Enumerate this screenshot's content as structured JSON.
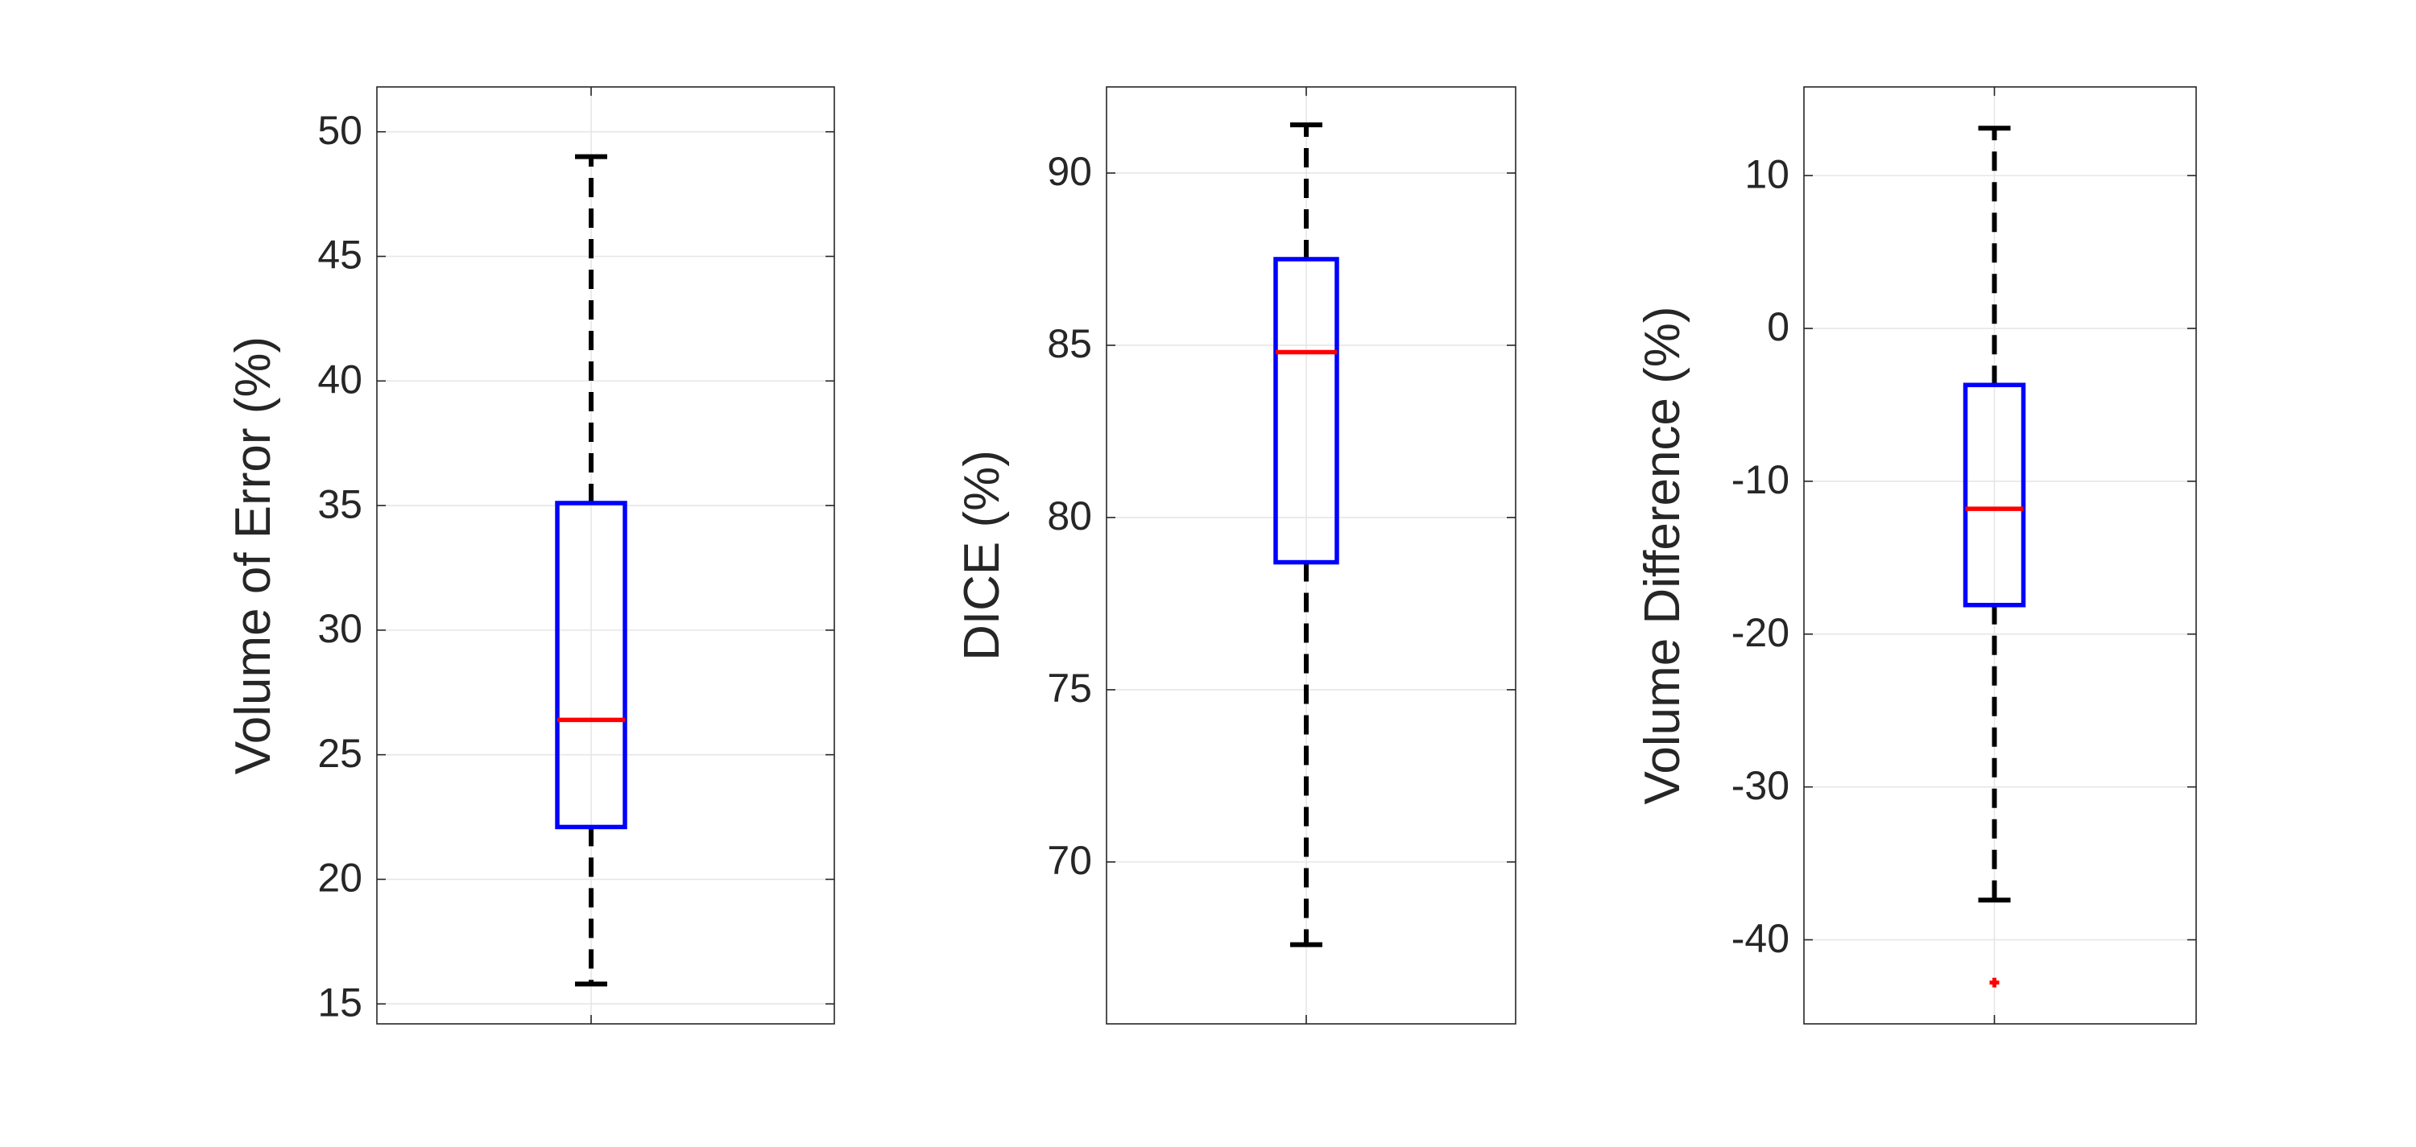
{
  "chart_data": [
    {
      "type": "box",
      "ylabel": "Volume of Error (%)",
      "ylim": [
        14.2,
        51.8
      ],
      "yticks": [
        15,
        20,
        25,
        30,
        35,
        40,
        45,
        50
      ],
      "grid": true,
      "box": {
        "lower_whisker": 15.8,
        "q1": 22.1,
        "median": 26.4,
        "q3": 35.1,
        "upper_whisker": 49.0,
        "outliers": []
      }
    },
    {
      "type": "box",
      "ylabel": "DICE (%)",
      "ylim": [
        65.3,
        92.5
      ],
      "yticks": [
        70,
        75,
        80,
        85,
        90
      ],
      "grid": true,
      "box": {
        "lower_whisker": 67.6,
        "q1": 78.7,
        "median": 84.8,
        "q3": 87.5,
        "upper_whisker": 91.4,
        "outliers": []
      }
    },
    {
      "type": "box",
      "ylabel": "Volume Difference (%)",
      "ylim": [
        -45.5,
        15.8
      ],
      "yticks": [
        -40,
        -30,
        -20,
        -10,
        0,
        10
      ],
      "grid": true,
      "box": {
        "lower_whisker": -37.4,
        "q1": -18.1,
        "median": -11.8,
        "q3": -3.7,
        "upper_whisker": 13.1,
        "outliers": [
          -42.8
        ]
      }
    }
  ],
  "colors": {
    "box": "#0000ff",
    "median": "#ff0000",
    "whisker": "#000000",
    "outlier": "#ff0000",
    "axis": "#262626",
    "grid": "#e6e6e6",
    "text": "#262626"
  }
}
